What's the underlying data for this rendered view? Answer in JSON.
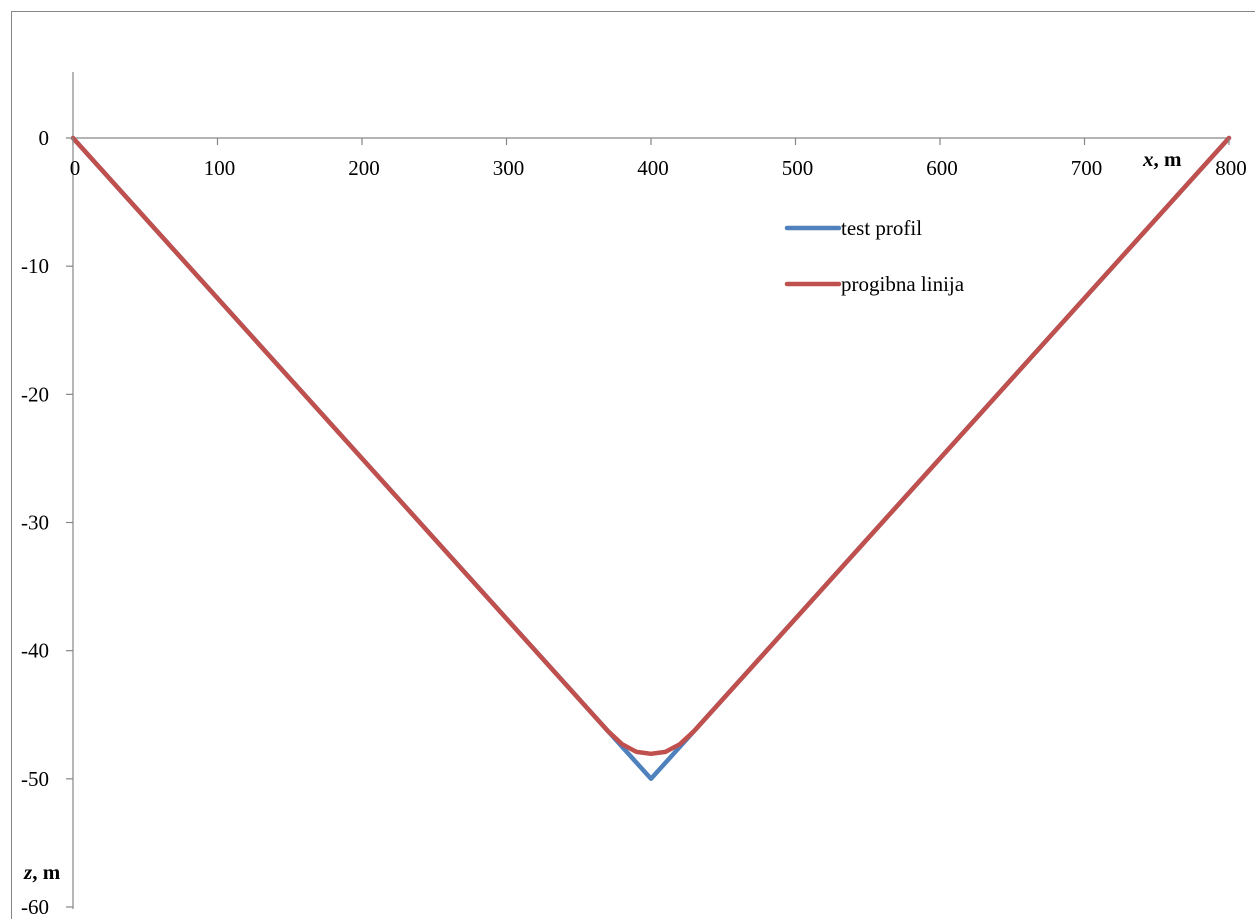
{
  "chart_data": {
    "type": "line",
    "xlabel": {
      "var": "x",
      "unit": ", m"
    },
    "ylabel": {
      "var": "z",
      "unit": ", m"
    },
    "xlim": [
      0,
      800
    ],
    "ylim": [
      -60,
      0
    ],
    "x_ticks": [
      0,
      100,
      200,
      300,
      400,
      500,
      600,
      700,
      800
    ],
    "y_ticks": [
      0,
      -10,
      -20,
      -30,
      -40,
      -50,
      -60
    ],
    "x_tick_labels": [
      "0",
      "100",
      "200",
      "300",
      "400",
      "500",
      "600",
      "700",
      "800"
    ],
    "y_tick_labels": [
      "0",
      "-10",
      "-20",
      "-30",
      "-40",
      "-50",
      "-60"
    ],
    "grid": false,
    "legend_position": "top-right",
    "series": [
      {
        "name": "test profil",
        "color": "#4F81BD",
        "points": [
          [
            0,
            0
          ],
          [
            400,
            -50
          ],
          [
            800,
            0
          ]
        ]
      },
      {
        "name": "progibna linija",
        "color": "#C0504D",
        "points": [
          [
            0,
            0
          ],
          [
            370,
            -46.25
          ],
          [
            380,
            -47.3
          ],
          [
            390,
            -47.9
          ],
          [
            400,
            -48.05
          ],
          [
            410,
            -47.9
          ],
          [
            420,
            -47.3
          ],
          [
            430,
            -46.25
          ],
          [
            800,
            0
          ]
        ]
      }
    ]
  }
}
